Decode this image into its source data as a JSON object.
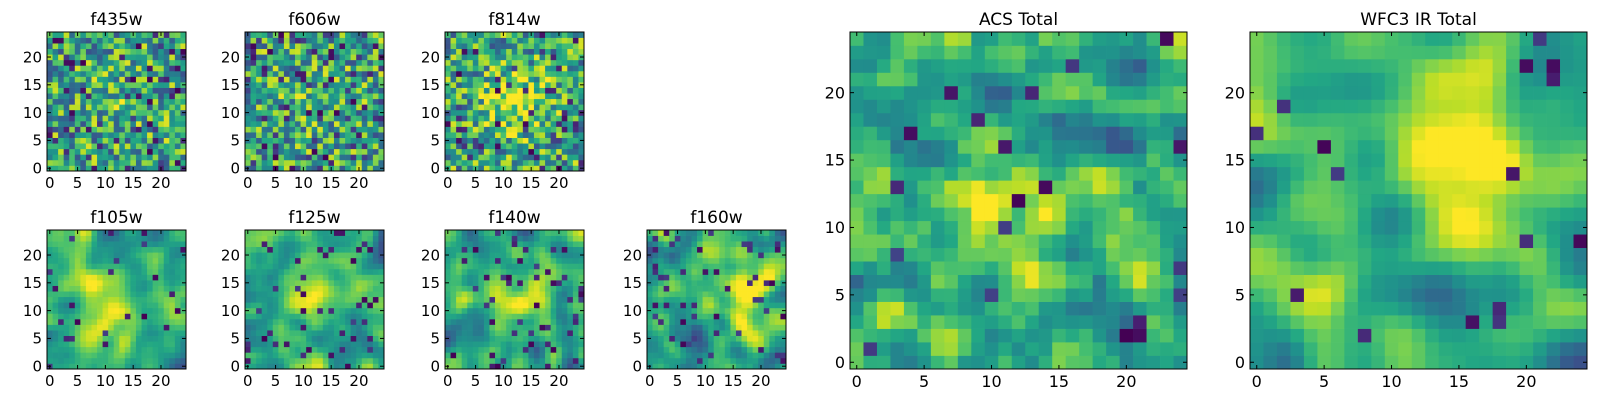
{
  "chart_data": [
    {
      "type": "heatmap",
      "title": "f435w",
      "xlim": [
        -0.5,
        24.5
      ],
      "ylim": [
        -0.5,
        24.5
      ],
      "xticks": [
        0,
        5,
        10,
        15,
        20
      ],
      "yticks": [
        0,
        5,
        10,
        15,
        20
      ],
      "grid_size": [
        25,
        25
      ],
      "colormap": "viridis",
      "seed": 11,
      "smooth": 0,
      "bright_center": [
        12,
        14
      ],
      "bright_amp": 0.08,
      "dark_frac": 0.1
    },
    {
      "type": "heatmap",
      "title": "f606w",
      "xlim": [
        -0.5,
        24.5
      ],
      "ylim": [
        -0.5,
        24.5
      ],
      "xticks": [
        0,
        5,
        10,
        15,
        20
      ],
      "yticks": [
        0,
        5,
        10,
        15,
        20
      ],
      "grid_size": [
        25,
        25
      ],
      "colormap": "viridis",
      "seed": 23,
      "smooth": 0,
      "bright_center": [
        12,
        12
      ],
      "bright_amp": 0.06,
      "dark_frac": 0.1
    },
    {
      "type": "heatmap",
      "title": "f814w",
      "xlim": [
        -0.5,
        24.5
      ],
      "ylim": [
        -0.5,
        24.5
      ],
      "xticks": [
        0,
        5,
        10,
        15,
        20
      ],
      "yticks": [
        0,
        5,
        10,
        15,
        20
      ],
      "grid_size": [
        25,
        25
      ],
      "colormap": "viridis",
      "seed": 37,
      "smooth": 0,
      "bright_center": [
        12,
        12
      ],
      "bright_amp": 0.35,
      "dark_frac": 0.08
    },
    {
      "type": "heatmap",
      "title": "f105w",
      "xlim": [
        -0.5,
        24.5
      ],
      "ylim": [
        -0.5,
        24.5
      ],
      "xticks": [
        0,
        5,
        10,
        15,
        20
      ],
      "yticks": [
        0,
        5,
        10,
        15,
        20
      ],
      "grid_size": [
        25,
        25
      ],
      "colormap": "viridis",
      "seed": 41,
      "smooth": 2,
      "bright_center": [
        11,
        10
      ],
      "bright_amp": 0.35,
      "dark_frac": 0.05
    },
    {
      "type": "heatmap",
      "title": "f125w",
      "xlim": [
        -0.5,
        24.5
      ],
      "ylim": [
        -0.5,
        24.5
      ],
      "xticks": [
        0,
        5,
        10,
        15,
        20
      ],
      "yticks": [
        0,
        5,
        10,
        15,
        20
      ],
      "grid_size": [
        25,
        25
      ],
      "colormap": "viridis",
      "seed": 53,
      "smooth": 2,
      "bright_center": [
        12,
        13
      ],
      "bright_amp": 0.25,
      "dark_frac": 0.06
    },
    {
      "type": "heatmap",
      "title": "f140w",
      "xlim": [
        -0.5,
        24.5
      ],
      "ylim": [
        -0.5,
        24.5
      ],
      "xticks": [
        0,
        5,
        10,
        15,
        20
      ],
      "yticks": [
        0,
        5,
        10,
        15,
        20
      ],
      "grid_size": [
        25,
        25
      ],
      "colormap": "viridis",
      "seed": 67,
      "smooth": 2,
      "bright_center": [
        14,
        14
      ],
      "bright_amp": 0.25,
      "dark_frac": 0.08
    },
    {
      "type": "heatmap",
      "title": "f160w",
      "xlim": [
        -0.5,
        24.5
      ],
      "ylim": [
        -0.5,
        24.5
      ],
      "xticks": [
        0,
        5,
        10,
        15,
        20
      ],
      "yticks": [
        0,
        5,
        10,
        15,
        20
      ],
      "grid_size": [
        25,
        25
      ],
      "colormap": "viridis",
      "seed": 79,
      "smooth": 2,
      "bright_center": [
        16,
        14
      ],
      "bright_amp": 0.35,
      "dark_frac": 0.08
    },
    {
      "type": "heatmap",
      "title": "ACS Total",
      "xlim": [
        -0.5,
        24.5
      ],
      "ylim": [
        -0.5,
        24.5
      ],
      "xticks": [
        0,
        5,
        10,
        15,
        20
      ],
      "yticks": [
        0,
        5,
        10,
        15,
        20
      ],
      "grid_size": [
        25,
        25
      ],
      "colormap": "viridis",
      "seed": 97,
      "smooth": 1,
      "bright_center": [
        12,
        12
      ],
      "bright_amp": 0.25,
      "dark_frac": 0.03
    },
    {
      "type": "heatmap",
      "title": "WFC3 IR Total",
      "xlim": [
        -0.5,
        24.5
      ],
      "ylim": [
        -0.5,
        24.5
      ],
      "xticks": [
        0,
        5,
        10,
        15,
        20
      ],
      "yticks": [
        0,
        5,
        10,
        15,
        20
      ],
      "grid_size": [
        25,
        25
      ],
      "colormap": "viridis",
      "seed": 131,
      "smooth": 3,
      "bright_center": [
        16,
        14
      ],
      "bright_amp": 0.4,
      "dark_frac": 0.03
    }
  ]
}
